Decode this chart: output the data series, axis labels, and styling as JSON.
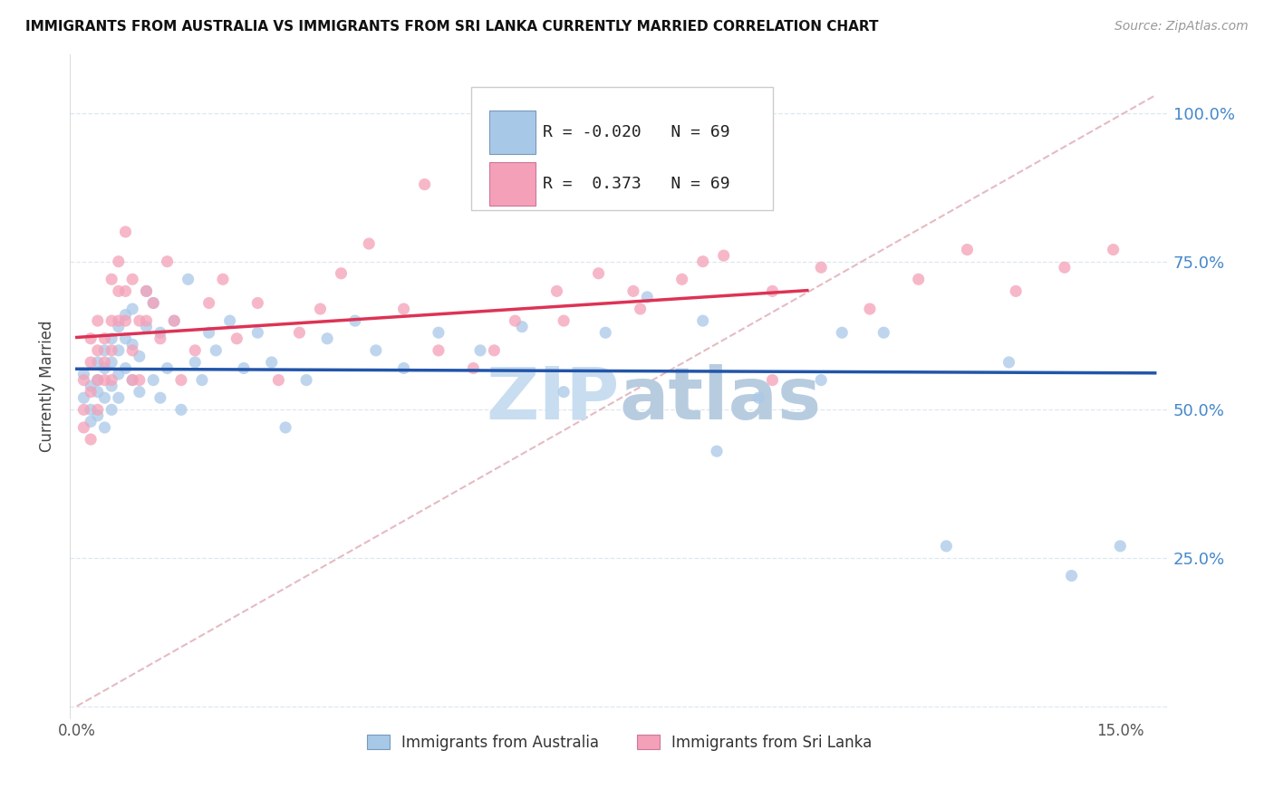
{
  "title": "IMMIGRANTS FROM AUSTRALIA VS IMMIGRANTS FROM SRI LANKA CURRENTLY MARRIED CORRELATION CHART",
  "source": "Source: ZipAtlas.com",
  "xlim": [
    -0.001,
    0.157
  ],
  "ylim": [
    -0.02,
    1.1
  ],
  "ylabel": "Currently Married",
  "australia_R": -0.02,
  "australia_N": 69,
  "srilanka_R": 0.373,
  "srilanka_N": 69,
  "australia_color": "#a8c8e8",
  "srilanka_color": "#f4a0b8",
  "australia_line_color": "#2255aa",
  "srilanka_line_color": "#dd3355",
  "diagonal_color": "#e0b0b8",
  "watermark_color": "#c8ddf0",
  "grid_color": "#dde8f0",
  "aus_x": [
    0.001,
    0.001,
    0.002,
    0.002,
    0.002,
    0.003,
    0.003,
    0.003,
    0.003,
    0.004,
    0.004,
    0.004,
    0.004,
    0.005,
    0.005,
    0.005,
    0.005,
    0.006,
    0.006,
    0.006,
    0.006,
    0.007,
    0.007,
    0.007,
    0.008,
    0.008,
    0.008,
    0.009,
    0.009,
    0.01,
    0.01,
    0.011,
    0.011,
    0.012,
    0.012,
    0.013,
    0.014,
    0.015,
    0.016,
    0.017,
    0.018,
    0.019,
    0.02,
    0.022,
    0.024,
    0.026,
    0.028,
    0.03,
    0.033,
    0.036,
    0.04,
    0.043,
    0.047,
    0.052,
    0.058,
    0.064,
    0.07,
    0.076,
    0.082,
    0.09,
    0.098,
    0.107,
    0.116,
    0.125,
    0.134,
    0.143,
    0.15,
    0.092,
    0.11
  ],
  "aus_y": [
    0.52,
    0.56,
    0.48,
    0.54,
    0.5,
    0.58,
    0.53,
    0.49,
    0.55,
    0.6,
    0.57,
    0.52,
    0.47,
    0.62,
    0.58,
    0.54,
    0.5,
    0.64,
    0.6,
    0.56,
    0.52,
    0.66,
    0.62,
    0.57,
    0.55,
    0.61,
    0.67,
    0.53,
    0.59,
    0.7,
    0.64,
    0.55,
    0.68,
    0.52,
    0.63,
    0.57,
    0.65,
    0.5,
    0.72,
    0.58,
    0.55,
    0.63,
    0.6,
    0.65,
    0.57,
    0.63,
    0.58,
    0.47,
    0.55,
    0.62,
    0.65,
    0.6,
    0.57,
    0.63,
    0.6,
    0.64,
    0.53,
    0.63,
    0.69,
    0.65,
    0.52,
    0.55,
    0.63,
    0.27,
    0.58,
    0.22,
    0.27,
    0.43,
    0.63
  ],
  "srl_x": [
    0.001,
    0.001,
    0.001,
    0.002,
    0.002,
    0.002,
    0.002,
    0.003,
    0.003,
    0.003,
    0.003,
    0.004,
    0.004,
    0.004,
    0.005,
    0.005,
    0.005,
    0.005,
    0.006,
    0.006,
    0.006,
    0.007,
    0.007,
    0.007,
    0.008,
    0.008,
    0.008,
    0.009,
    0.009,
    0.01,
    0.01,
    0.011,
    0.012,
    0.013,
    0.014,
    0.015,
    0.017,
    0.019,
    0.021,
    0.023,
    0.026,
    0.029,
    0.032,
    0.035,
    0.038,
    0.042,
    0.047,
    0.052,
    0.057,
    0.063,
    0.069,
    0.075,
    0.081,
    0.087,
    0.093,
    0.1,
    0.107,
    0.114,
    0.121,
    0.128,
    0.135,
    0.142,
    0.149,
    0.05,
    0.06,
    0.07,
    0.08,
    0.09,
    0.1
  ],
  "srl_y": [
    0.5,
    0.55,
    0.47,
    0.53,
    0.58,
    0.45,
    0.62,
    0.55,
    0.6,
    0.5,
    0.65,
    0.58,
    0.62,
    0.55,
    0.72,
    0.65,
    0.55,
    0.6,
    0.75,
    0.65,
    0.7,
    0.8,
    0.7,
    0.65,
    0.6,
    0.55,
    0.72,
    0.65,
    0.55,
    0.7,
    0.65,
    0.68,
    0.62,
    0.75,
    0.65,
    0.55,
    0.6,
    0.68,
    0.72,
    0.62,
    0.68,
    0.55,
    0.63,
    0.67,
    0.73,
    0.78,
    0.67,
    0.6,
    0.57,
    0.65,
    0.7,
    0.73,
    0.67,
    0.72,
    0.76,
    0.7,
    0.74,
    0.67,
    0.72,
    0.77,
    0.7,
    0.74,
    0.77,
    0.88,
    0.6,
    0.65,
    0.7,
    0.75,
    0.55
  ]
}
